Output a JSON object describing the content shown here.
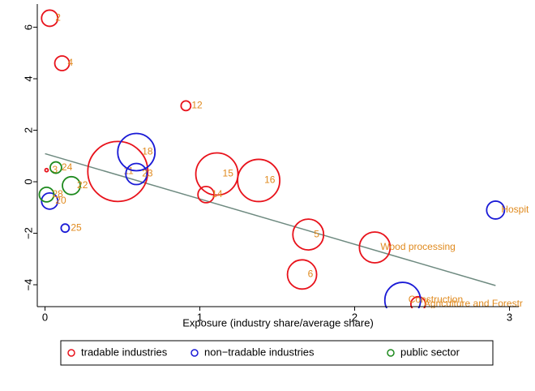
{
  "chart_data": {
    "type": "bubble",
    "x_label": "Exposure (industry share/average share)",
    "xlim": [
      -0.05,
      3.06
    ],
    "xticks": [
      0,
      1,
      2,
      3
    ],
    "ylim": [
      -4.85,
      6.9
    ],
    "yticks": [
      {
        "value": -4,
        "label": "−4"
      },
      {
        "value": -2,
        "label": "−2"
      },
      0,
      2,
      4,
      6
    ],
    "label_color": "#e08a1e",
    "series": [
      {
        "name": "tradable industries",
        "color": "#e8121b",
        "x": [
          0.03,
          0.11,
          0.91,
          0.01,
          0.47,
          1.11,
          1.38,
          1.04,
          1.7,
          2.13,
          1.66,
          2.41
        ],
        "y": [
          6.35,
          4.6,
          2.95,
          0.45,
          0.4,
          0.3,
          0.05,
          -0.5,
          -2.05,
          -2.55,
          -3.6,
          -4.75
        ],
        "sizes": [
          10,
          9,
          6,
          2,
          37,
          26,
          26,
          10,
          19,
          19,
          18,
          9
        ],
        "labels": [
          "2",
          "4",
          "12",
          "3",
          "11",
          "15",
          "16",
          "14",
          "5",
          "Wood processing",
          "6",
          "Agriculture and Forestr"
        ]
      },
      {
        "name": "non−tradable industries",
        "color": "#1a1ad6",
        "x": [
          0.59,
          0.59,
          0.03,
          0.13,
          2.91,
          2.31
        ],
        "y": [
          1.15,
          0.3,
          -0.75,
          -1.8,
          -1.1,
          -4.6
        ],
        "sizes": [
          23,
          13,
          10,
          5,
          11,
          22
        ],
        "labels": [
          "18",
          "23",
          "20",
          "25",
          "Hospit",
          "Construction"
        ]
      },
      {
        "name": "public sector",
        "color": "#1e8a1e",
        "x": [
          0.07,
          0.17,
          0.01
        ],
        "y": [
          0.55,
          -0.15,
          -0.5
        ],
        "sizes": [
          7,
          11,
          9
        ],
        "labels": [
          "24",
          "22",
          "28"
        ]
      }
    ],
    "fit_line": {
      "x": [
        0,
        2.91
      ],
      "y": [
        1.09,
        -4.03
      ],
      "color": "#6e8a80"
    }
  }
}
